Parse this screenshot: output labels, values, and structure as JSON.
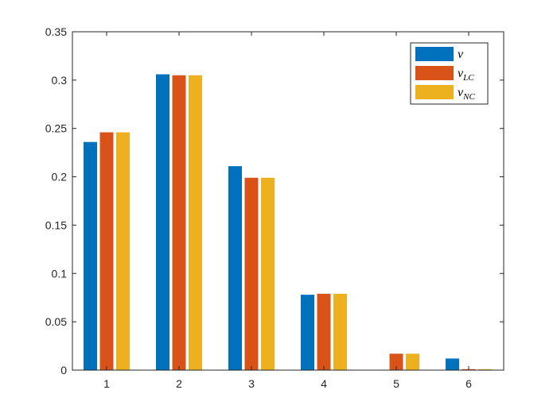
{
  "chart_data": {
    "type": "bar",
    "categories": [
      "1",
      "2",
      "3",
      "4",
      "5",
      "6"
    ],
    "series": [
      {
        "name": "v",
        "sub": "",
        "color": "#0072BD",
        "values": [
          0.236,
          0.306,
          0.211,
          0.078,
          0.0,
          0.012
        ]
      },
      {
        "name": "v",
        "sub": "LC",
        "color": "#D95319",
        "values": [
          0.246,
          0.305,
          0.199,
          0.079,
          0.017,
          0.001
        ]
      },
      {
        "name": "v",
        "sub": "NC",
        "color": "#EDB120",
        "values": [
          0.246,
          0.305,
          0.199,
          0.079,
          0.017,
          0.001
        ]
      }
    ],
    "title": "",
    "xlabel": "",
    "ylabel": "",
    "ylim": [
      0,
      0.35
    ],
    "yticks": [
      "0",
      "0.05",
      "0.1",
      "0.15",
      "0.2",
      "0.25",
      "0.3",
      "0.35"
    ],
    "grid": false,
    "legend": "top-right"
  }
}
